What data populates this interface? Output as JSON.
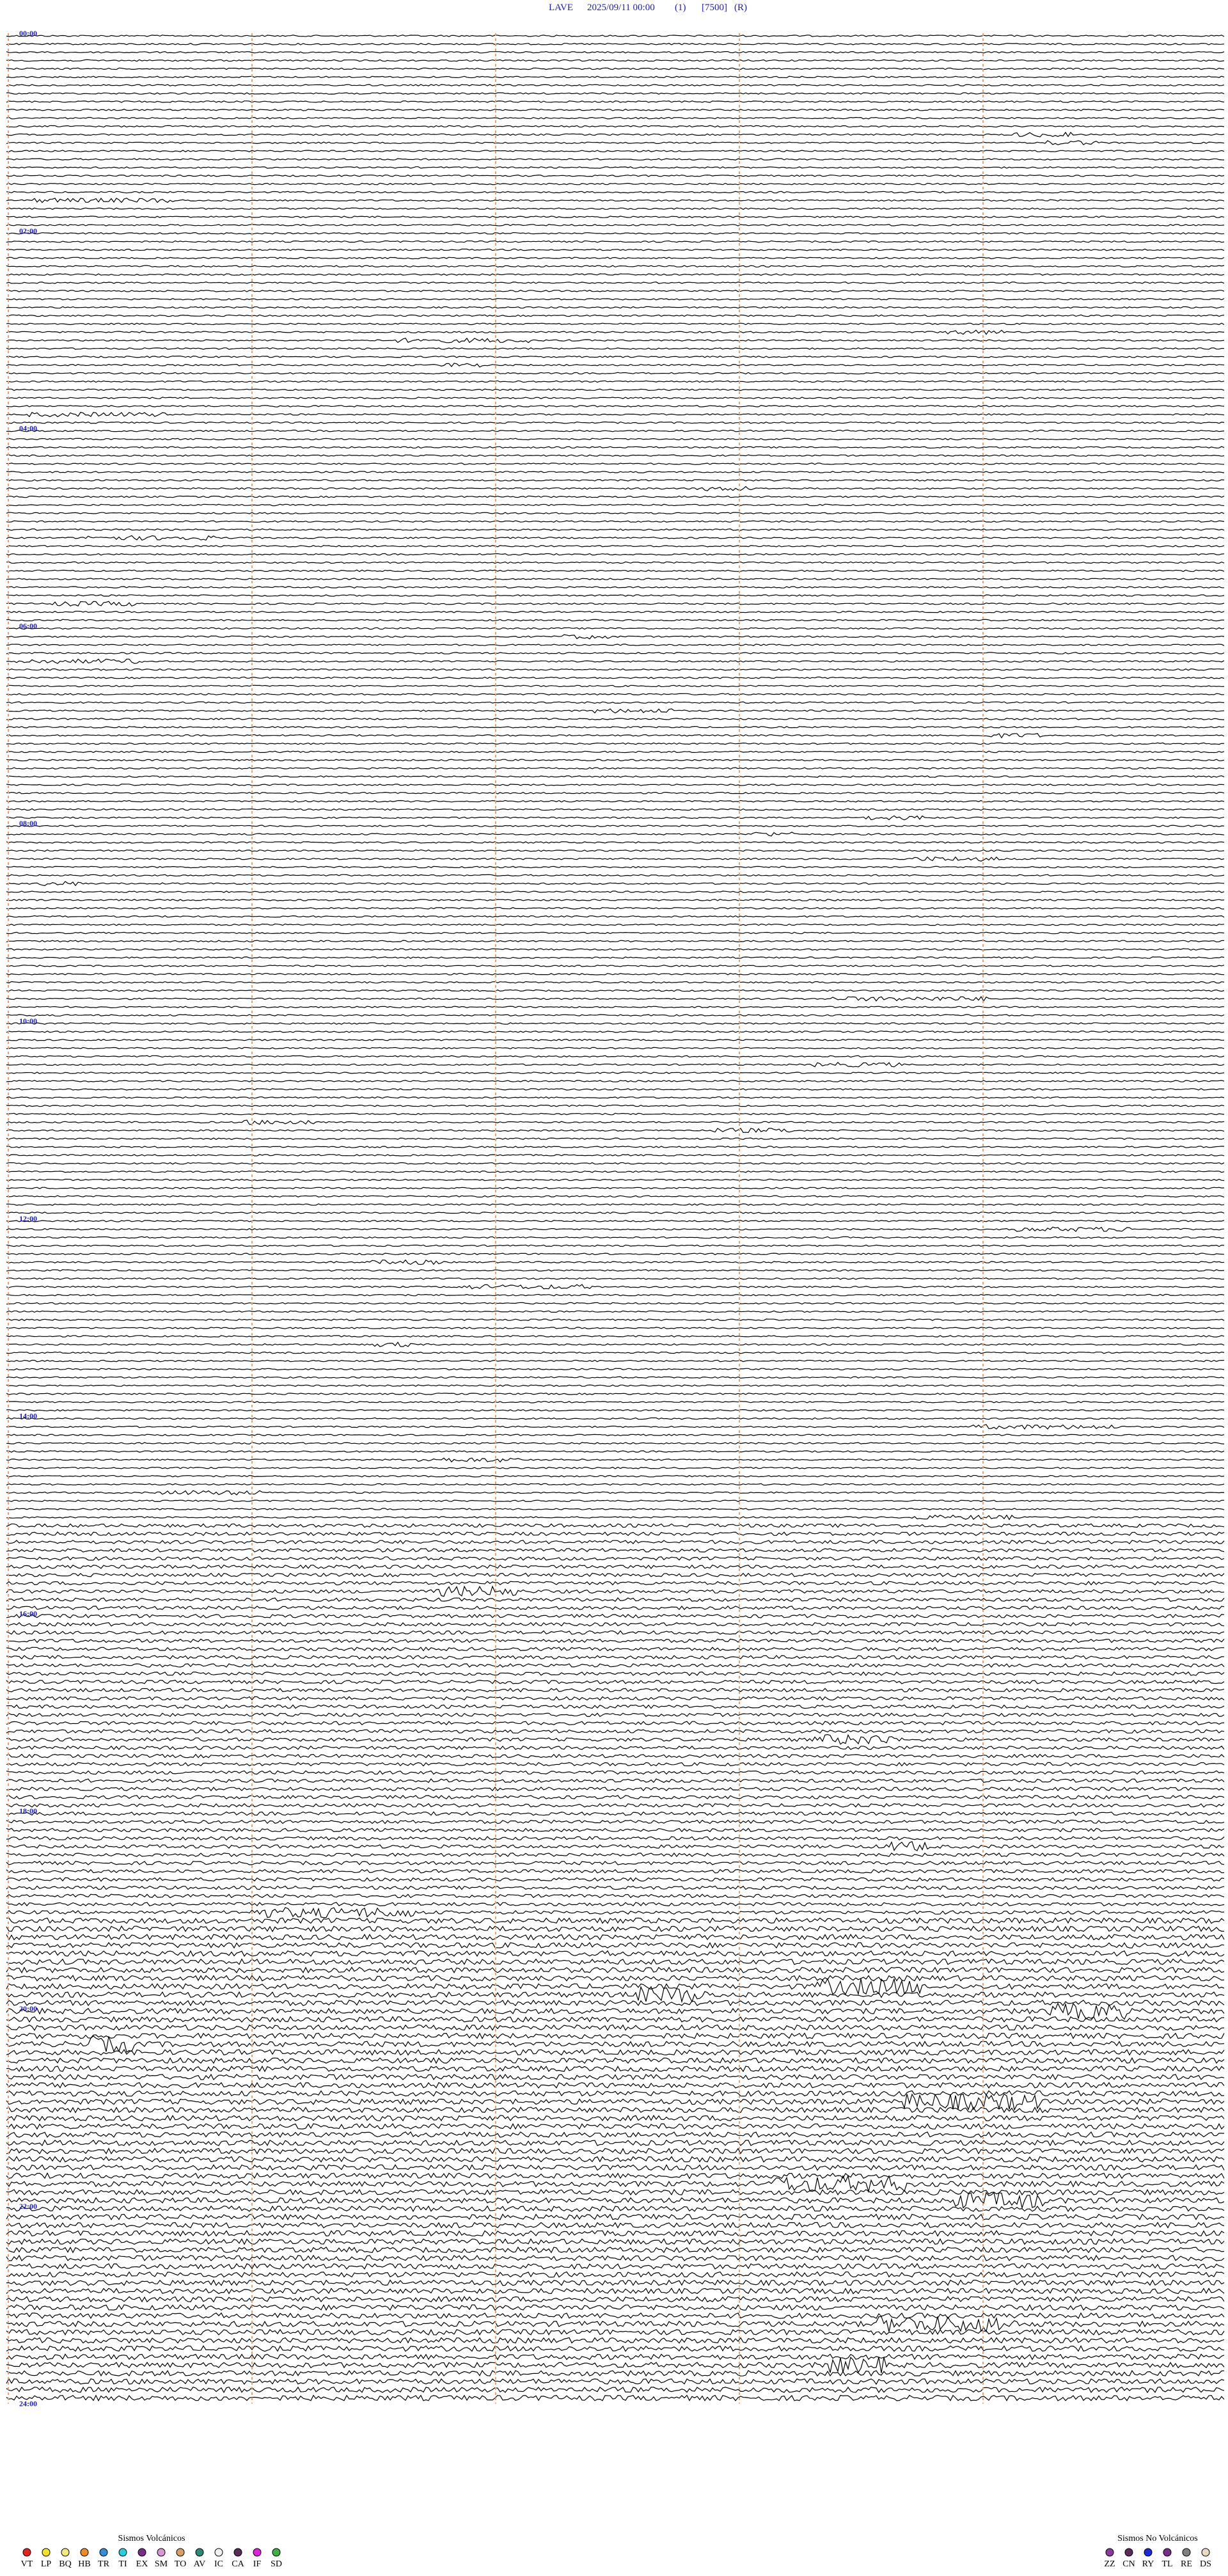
{
  "header": {
    "station": "LAVE",
    "datetime": "2025/09/11 00:00",
    "channel": "(1)",
    "scale": "[7500]",
    "mode": "(R)"
  },
  "time_labels": [
    "00:00",
    "02:00",
    "04:00",
    "06:00",
    "08:00",
    "10:00",
    "12:00",
    "14:00",
    "16:00",
    "18:00",
    "20:00",
    "22:00",
    "24:00"
  ],
  "legend": {
    "volcanic": {
      "title": "Sismos Volcánicos",
      "types": [
        {
          "code": "VT",
          "color": "#e8201c"
        },
        {
          "code": "LP",
          "color": "#f5e61a"
        },
        {
          "code": "BQ",
          "color": "#f3ea7a"
        },
        {
          "code": "HB",
          "color": "#f28c1e"
        },
        {
          "code": "TR",
          "color": "#2f8fd8"
        },
        {
          "code": "TI",
          "color": "#22d0e0"
        },
        {
          "code": "EX",
          "color": "#7a2c8c"
        },
        {
          "code": "SM",
          "color": "#d898d8"
        },
        {
          "code": "TO",
          "color": "#d9a066"
        },
        {
          "code": "AV",
          "color": "#2a8a78"
        },
        {
          "code": "IC",
          "color": "#f2f2f2"
        },
        {
          "code": "CA",
          "color": "#5a2a5a"
        },
        {
          "code": "IF",
          "color": "#e020e0"
        },
        {
          "code": "SD",
          "color": "#3cb043"
        }
      ]
    },
    "non_volcanic": {
      "title": "Sismos No Volcánicos",
      "types": [
        {
          "code": "ZZ",
          "color": "#8a3aa0"
        },
        {
          "code": "CN",
          "color": "#5a2a5a"
        },
        {
          "code": "RY",
          "color": "#1a2ad8"
        },
        {
          "code": "TL",
          "color": "#7a2c8c"
        },
        {
          "code": "RE",
          "color": "#808080"
        },
        {
          "code": "DS",
          "color": "#e8dcc0"
        }
      ]
    }
  }
}
